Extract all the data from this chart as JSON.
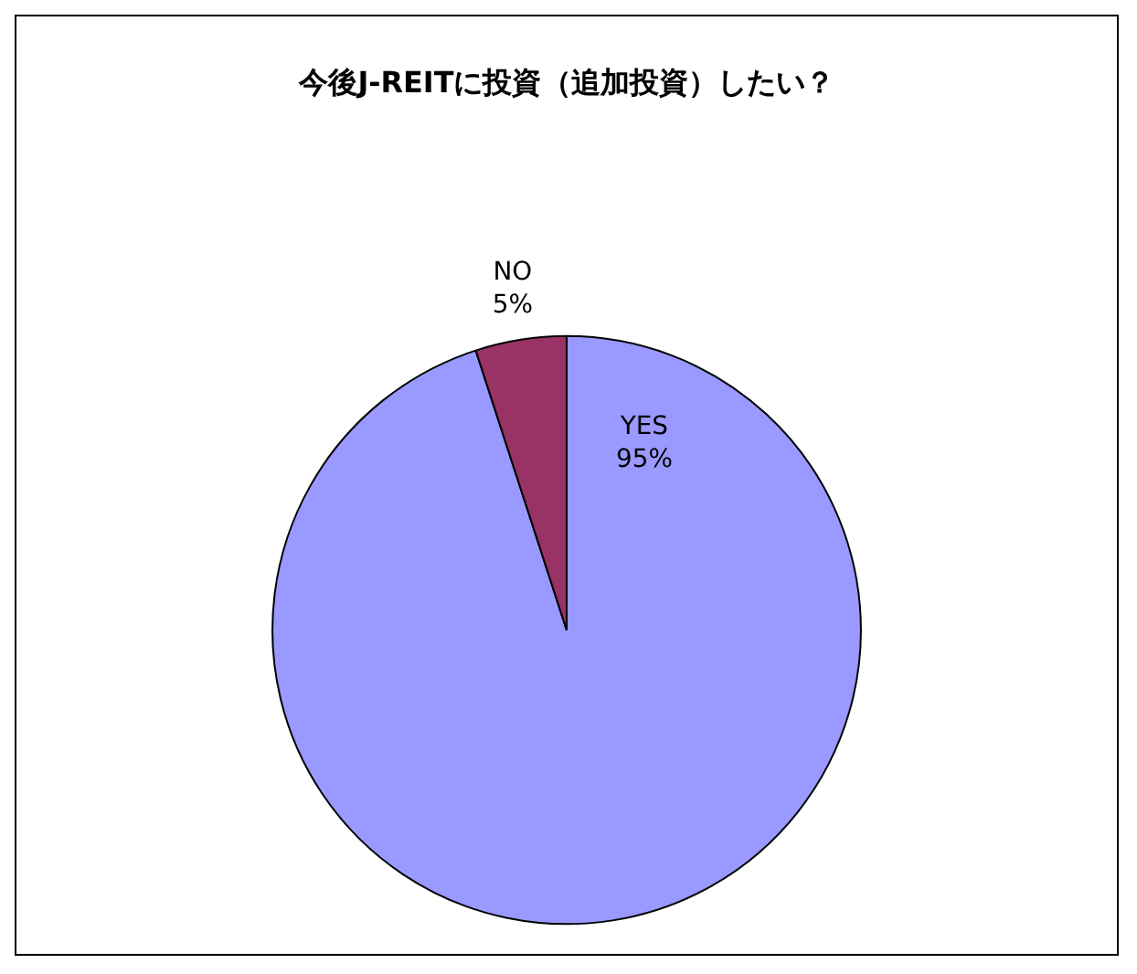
{
  "chart_data": {
    "type": "pie",
    "title": "今後J-REITに投資（追加投資）したい？",
    "categories": [
      "YES",
      "NO"
    ],
    "values": [
      95,
      5
    ],
    "colors": [
      "#9999ff",
      "#993366"
    ],
    "value_labels": [
      "95%",
      "5%"
    ],
    "legend": false
  }
}
